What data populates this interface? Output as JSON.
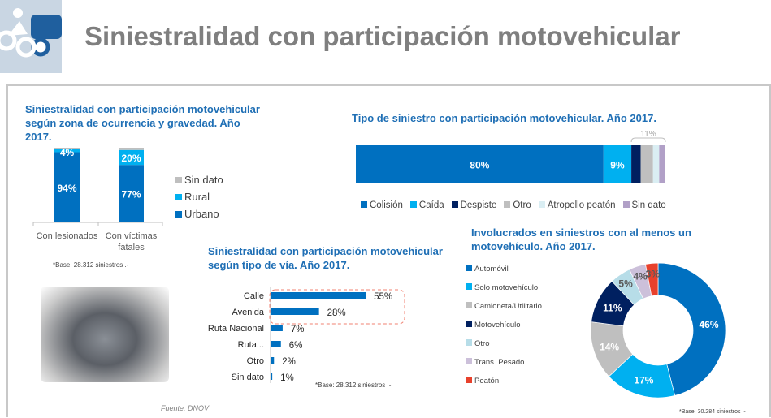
{
  "header": {
    "title": "Siniestralidad con participación motovehicular",
    "logo_icon": "motorcycle-car-crash-icon"
  },
  "photo": {
    "icon": "motorcycle-photo"
  },
  "source": "Fuente: DNOV",
  "chart_data": [
    {
      "type": "bar",
      "stacked": true,
      "title": "Siniestralidad con participación motovehicular según zona de ocurrencia y gravedad. Año 2017.",
      "categories": [
        "Con lesionados",
        "Con víctimas fatales"
      ],
      "series": [
        {
          "name": "Urbano",
          "values": [
            94,
            77
          ],
          "color": "#0070c0",
          "labels": [
            "94%",
            "77%"
          ]
        },
        {
          "name": "Rural",
          "values": [
            4,
            20
          ],
          "color": "#00b0f0",
          "labels": [
            "4%",
            "20%"
          ]
        },
        {
          "name": "Sin dato",
          "values": [
            2,
            3
          ],
          "color": "#bfbfbf",
          "labels": [
            "",
            ""
          ]
        }
      ],
      "legend_order": [
        "Sin dato",
        "Rural",
        "Urbano"
      ],
      "legend": "right",
      "ylim": [
        0,
        100
      ],
      "note": "*Base: 28.312 siniestros .-"
    },
    {
      "type": "bar",
      "stacked": true,
      "orientation": "horizontal",
      "title": "Tipo de siniestro con participación motovehicular. Año 2017.",
      "series": [
        {
          "name": "Colisión",
          "value": 80,
          "color": "#0070c0",
          "label": "80%"
        },
        {
          "name": "Caída",
          "value": 9,
          "color": "#00b0f0",
          "label": "9%"
        },
        {
          "name": "Despiste",
          "value": 3,
          "color": "#002060",
          "label": ""
        },
        {
          "name": "Otro",
          "value": 4,
          "color": "#bfbfbf",
          "label": ""
        },
        {
          "name": "Atropello peatón",
          "value": 2,
          "color": "#daeef3",
          "label": ""
        },
        {
          "name": "Sin dato",
          "value": 2,
          "color": "#b1a0c7",
          "label": ""
        }
      ],
      "bracket_label": "11%",
      "legend": "bottom"
    },
    {
      "type": "bar",
      "orientation": "horizontal",
      "title": "Siniestralidad con participación motovehicular según tipo de vía.  Año 2017.",
      "categories": [
        "Calle",
        "Avenida",
        "Ruta Nacional",
        "Ruta...",
        "Otro",
        "Sin dato"
      ],
      "values": [
        55,
        28,
        7,
        6,
        2,
        1
      ],
      "labels": [
        "55%",
        "28%",
        "7%",
        "6%",
        "2%",
        "1%"
      ],
      "color": "#0070c0",
      "highlight": [
        "Calle",
        "Avenida"
      ],
      "note": "*Base: 28.312 siniestros .-"
    },
    {
      "type": "pie",
      "donut": true,
      "title": "Involucrados en siniestros con al menos un motovehículo. Año 2017.",
      "categories": [
        "Automóvil",
        "Solo motovehículo",
        "Camioneta/Utilitario",
        "Motovehículo",
        "Otro",
        "Trans. Pesado",
        "Peatón"
      ],
      "values": [
        46,
        17,
        14,
        11,
        5,
        4,
        3
      ],
      "labels": [
        "46%",
        "17%",
        "14%",
        "11%",
        "5%",
        "4%",
        "3%"
      ],
      "colors": [
        "#0070c0",
        "#00b0f0",
        "#bfbfbf",
        "#002060",
        "#b7dde8",
        "#ccc0da",
        "#e8412c"
      ],
      "legend": "left",
      "note": "*Base: 30.284 siniestros .-"
    }
  ]
}
